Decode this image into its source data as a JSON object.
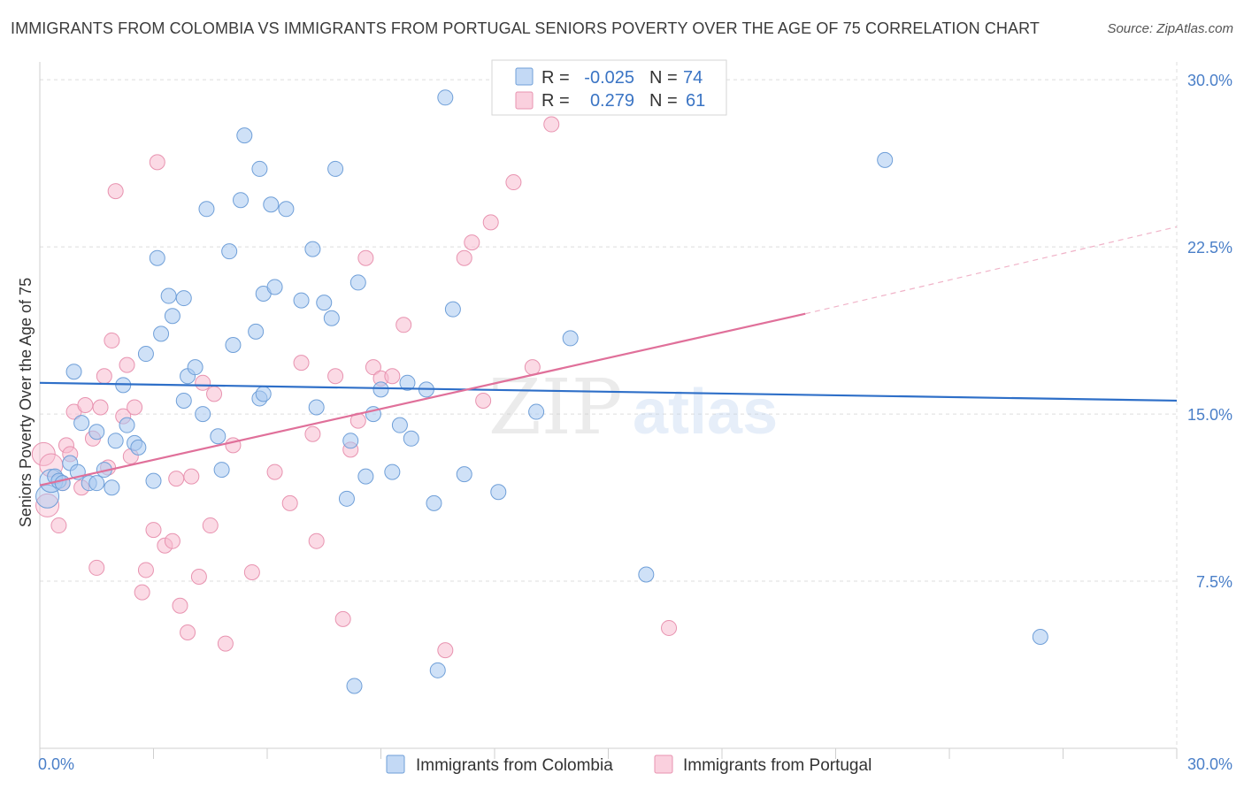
{
  "title": "IMMIGRANTS FROM COLOMBIA VS IMMIGRANTS FROM PORTUGAL SENIORS POVERTY OVER THE AGE OF 75 CORRELATION CHART",
  "source": "Source: ZipAtlas.com",
  "watermark": {
    "zip": "ZIP",
    "atlas": "atlas"
  },
  "legend": {
    "rows": [
      {
        "r_label": "R =",
        "r_value": "-0.025",
        "n_label": "N =",
        "n_value": "74"
      },
      {
        "r_label": "R =",
        "r_value": "0.279",
        "n_label": "N =",
        "n_value": "61"
      }
    ]
  },
  "chart_data": {
    "type": "scatter",
    "title": "IMMIGRANTS FROM COLOMBIA VS IMMIGRANTS FROM PORTUGAL SENIORS POVERTY OVER THE AGE OF 75 CORRELATION CHART",
    "xlabel": "",
    "ylabel": "Seniors Poverty Over the Age of 75",
    "xlim": [
      0,
      30
    ],
    "ylim": [
      0,
      30.8
    ],
    "x_tick_labels": [
      "0.0%",
      "30.0%"
    ],
    "y_ticks": [
      7.5,
      15.0,
      22.5,
      30.0
    ],
    "y_tick_labels": [
      "7.5%",
      "15.0%",
      "22.5%",
      "30.0%"
    ],
    "grid": true,
    "legend_position": "top-center",
    "series": [
      {
        "name": "Immigrants from Colombia",
        "color": "#a8c8f0",
        "edge_color": "#6f9fd8",
        "line_color": "#2e6fc8",
        "r": -0.025,
        "n": 74,
        "trend": {
          "x": [
            0,
            30
          ],
          "y": [
            16.4,
            15.6
          ]
        },
        "points": [
          [
            0.2,
            11.3
          ],
          [
            0.3,
            12.0
          ],
          [
            0.4,
            12.2
          ],
          [
            0.5,
            12.0
          ],
          [
            0.6,
            11.9
          ],
          [
            0.8,
            12.8
          ],
          [
            0.9,
            16.9
          ],
          [
            1.0,
            12.4
          ],
          [
            1.1,
            14.6
          ],
          [
            1.3,
            11.9
          ],
          [
            1.5,
            14.2
          ],
          [
            1.5,
            11.9
          ],
          [
            1.7,
            12.5
          ],
          [
            1.9,
            11.7
          ],
          [
            2.0,
            13.8
          ],
          [
            2.2,
            16.3
          ],
          [
            2.3,
            14.5
          ],
          [
            2.5,
            13.7
          ],
          [
            2.6,
            13.5
          ],
          [
            2.8,
            17.7
          ],
          [
            3.0,
            12.0
          ],
          [
            3.1,
            22.0
          ],
          [
            3.2,
            18.6
          ],
          [
            3.4,
            20.3
          ],
          [
            3.5,
            19.4
          ],
          [
            3.8,
            15.6
          ],
          [
            3.8,
            20.2
          ],
          [
            3.9,
            16.7
          ],
          [
            4.1,
            17.1
          ],
          [
            4.3,
            15.0
          ],
          [
            4.4,
            24.2
          ],
          [
            4.7,
            14.0
          ],
          [
            4.8,
            12.5
          ],
          [
            5.0,
            22.3
          ],
          [
            5.1,
            18.1
          ],
          [
            5.3,
            24.6
          ],
          [
            5.4,
            27.5
          ],
          [
            5.7,
            18.7
          ],
          [
            5.8,
            26.0
          ],
          [
            5.8,
            15.7
          ],
          [
            5.9,
            15.9
          ],
          [
            5.9,
            20.4
          ],
          [
            6.1,
            24.4
          ],
          [
            6.2,
            20.7
          ],
          [
            6.5,
            24.2
          ],
          [
            6.9,
            20.1
          ],
          [
            7.2,
            22.4
          ],
          [
            7.3,
            15.3
          ],
          [
            7.5,
            20.0
          ],
          [
            7.7,
            19.3
          ],
          [
            7.8,
            26.0
          ],
          [
            8.1,
            11.2
          ],
          [
            8.2,
            13.8
          ],
          [
            8.3,
            2.8
          ],
          [
            8.4,
            20.9
          ],
          [
            8.6,
            12.2
          ],
          [
            8.8,
            15.0
          ],
          [
            9.0,
            16.1
          ],
          [
            9.3,
            12.4
          ],
          [
            9.5,
            14.5
          ],
          [
            9.7,
            16.4
          ],
          [
            9.8,
            13.9
          ],
          [
            10.2,
            16.1
          ],
          [
            10.4,
            11.0
          ],
          [
            10.5,
            3.5
          ],
          [
            10.7,
            29.2
          ],
          [
            10.9,
            19.7
          ],
          [
            11.2,
            12.3
          ],
          [
            12.1,
            11.5
          ],
          [
            13.1,
            15.1
          ],
          [
            14.0,
            18.4
          ],
          [
            16.0,
            7.8
          ],
          [
            22.3,
            26.4
          ],
          [
            26.4,
            5.0
          ]
        ]
      },
      {
        "name": "Immigrants from Portugal",
        "color": "#f8bcd0",
        "edge_color": "#e893b0",
        "line_color": "#e0709a",
        "r": 0.279,
        "n": 61,
        "trend": {
          "x": [
            0,
            20.2
          ],
          "y": [
            11.8,
            19.5
          ]
        },
        "trend_dashed": {
          "x": [
            20.2,
            30
          ],
          "y": [
            19.5,
            23.4
          ]
        },
        "points": [
          [
            0.1,
            13.2
          ],
          [
            0.2,
            10.9
          ],
          [
            0.3,
            12.7
          ],
          [
            0.5,
            10.0
          ],
          [
            0.6,
            11.9
          ],
          [
            0.7,
            13.6
          ],
          [
            0.8,
            13.2
          ],
          [
            0.9,
            15.1
          ],
          [
            1.1,
            11.7
          ],
          [
            1.2,
            15.4
          ],
          [
            1.4,
            13.9
          ],
          [
            1.5,
            8.1
          ],
          [
            1.6,
            15.3
          ],
          [
            1.7,
            16.7
          ],
          [
            1.8,
            12.6
          ],
          [
            1.9,
            18.3
          ],
          [
            2.0,
            25.0
          ],
          [
            2.2,
            14.9
          ],
          [
            2.3,
            17.2
          ],
          [
            2.4,
            13.1
          ],
          [
            2.5,
            15.3
          ],
          [
            2.7,
            7.0
          ],
          [
            2.8,
            8.0
          ],
          [
            3.0,
            9.8
          ],
          [
            3.1,
            26.3
          ],
          [
            3.3,
            9.1
          ],
          [
            3.5,
            9.3
          ],
          [
            3.6,
            12.1
          ],
          [
            3.7,
            6.4
          ],
          [
            3.9,
            5.2
          ],
          [
            4.0,
            12.2
          ],
          [
            4.2,
            7.7
          ],
          [
            4.3,
            16.4
          ],
          [
            4.5,
            10.0
          ],
          [
            4.6,
            15.9
          ],
          [
            4.9,
            4.7
          ],
          [
            5.1,
            13.6
          ],
          [
            5.6,
            7.9
          ],
          [
            6.2,
            12.4
          ],
          [
            6.6,
            11.0
          ],
          [
            6.9,
            17.3
          ],
          [
            7.2,
            14.1
          ],
          [
            7.3,
            9.3
          ],
          [
            7.8,
            16.7
          ],
          [
            8.0,
            5.8
          ],
          [
            8.2,
            13.4
          ],
          [
            8.4,
            14.7
          ],
          [
            8.6,
            22.0
          ],
          [
            8.8,
            17.1
          ],
          [
            9.0,
            16.6
          ],
          [
            9.3,
            16.7
          ],
          [
            9.6,
            19.0
          ],
          [
            10.7,
            4.4
          ],
          [
            11.2,
            22.0
          ],
          [
            11.4,
            22.7
          ],
          [
            11.7,
            15.6
          ],
          [
            11.9,
            23.6
          ],
          [
            12.5,
            25.4
          ],
          [
            13.0,
            17.1
          ],
          [
            13.5,
            28.0
          ],
          [
            16.6,
            5.4
          ]
        ]
      }
    ]
  }
}
